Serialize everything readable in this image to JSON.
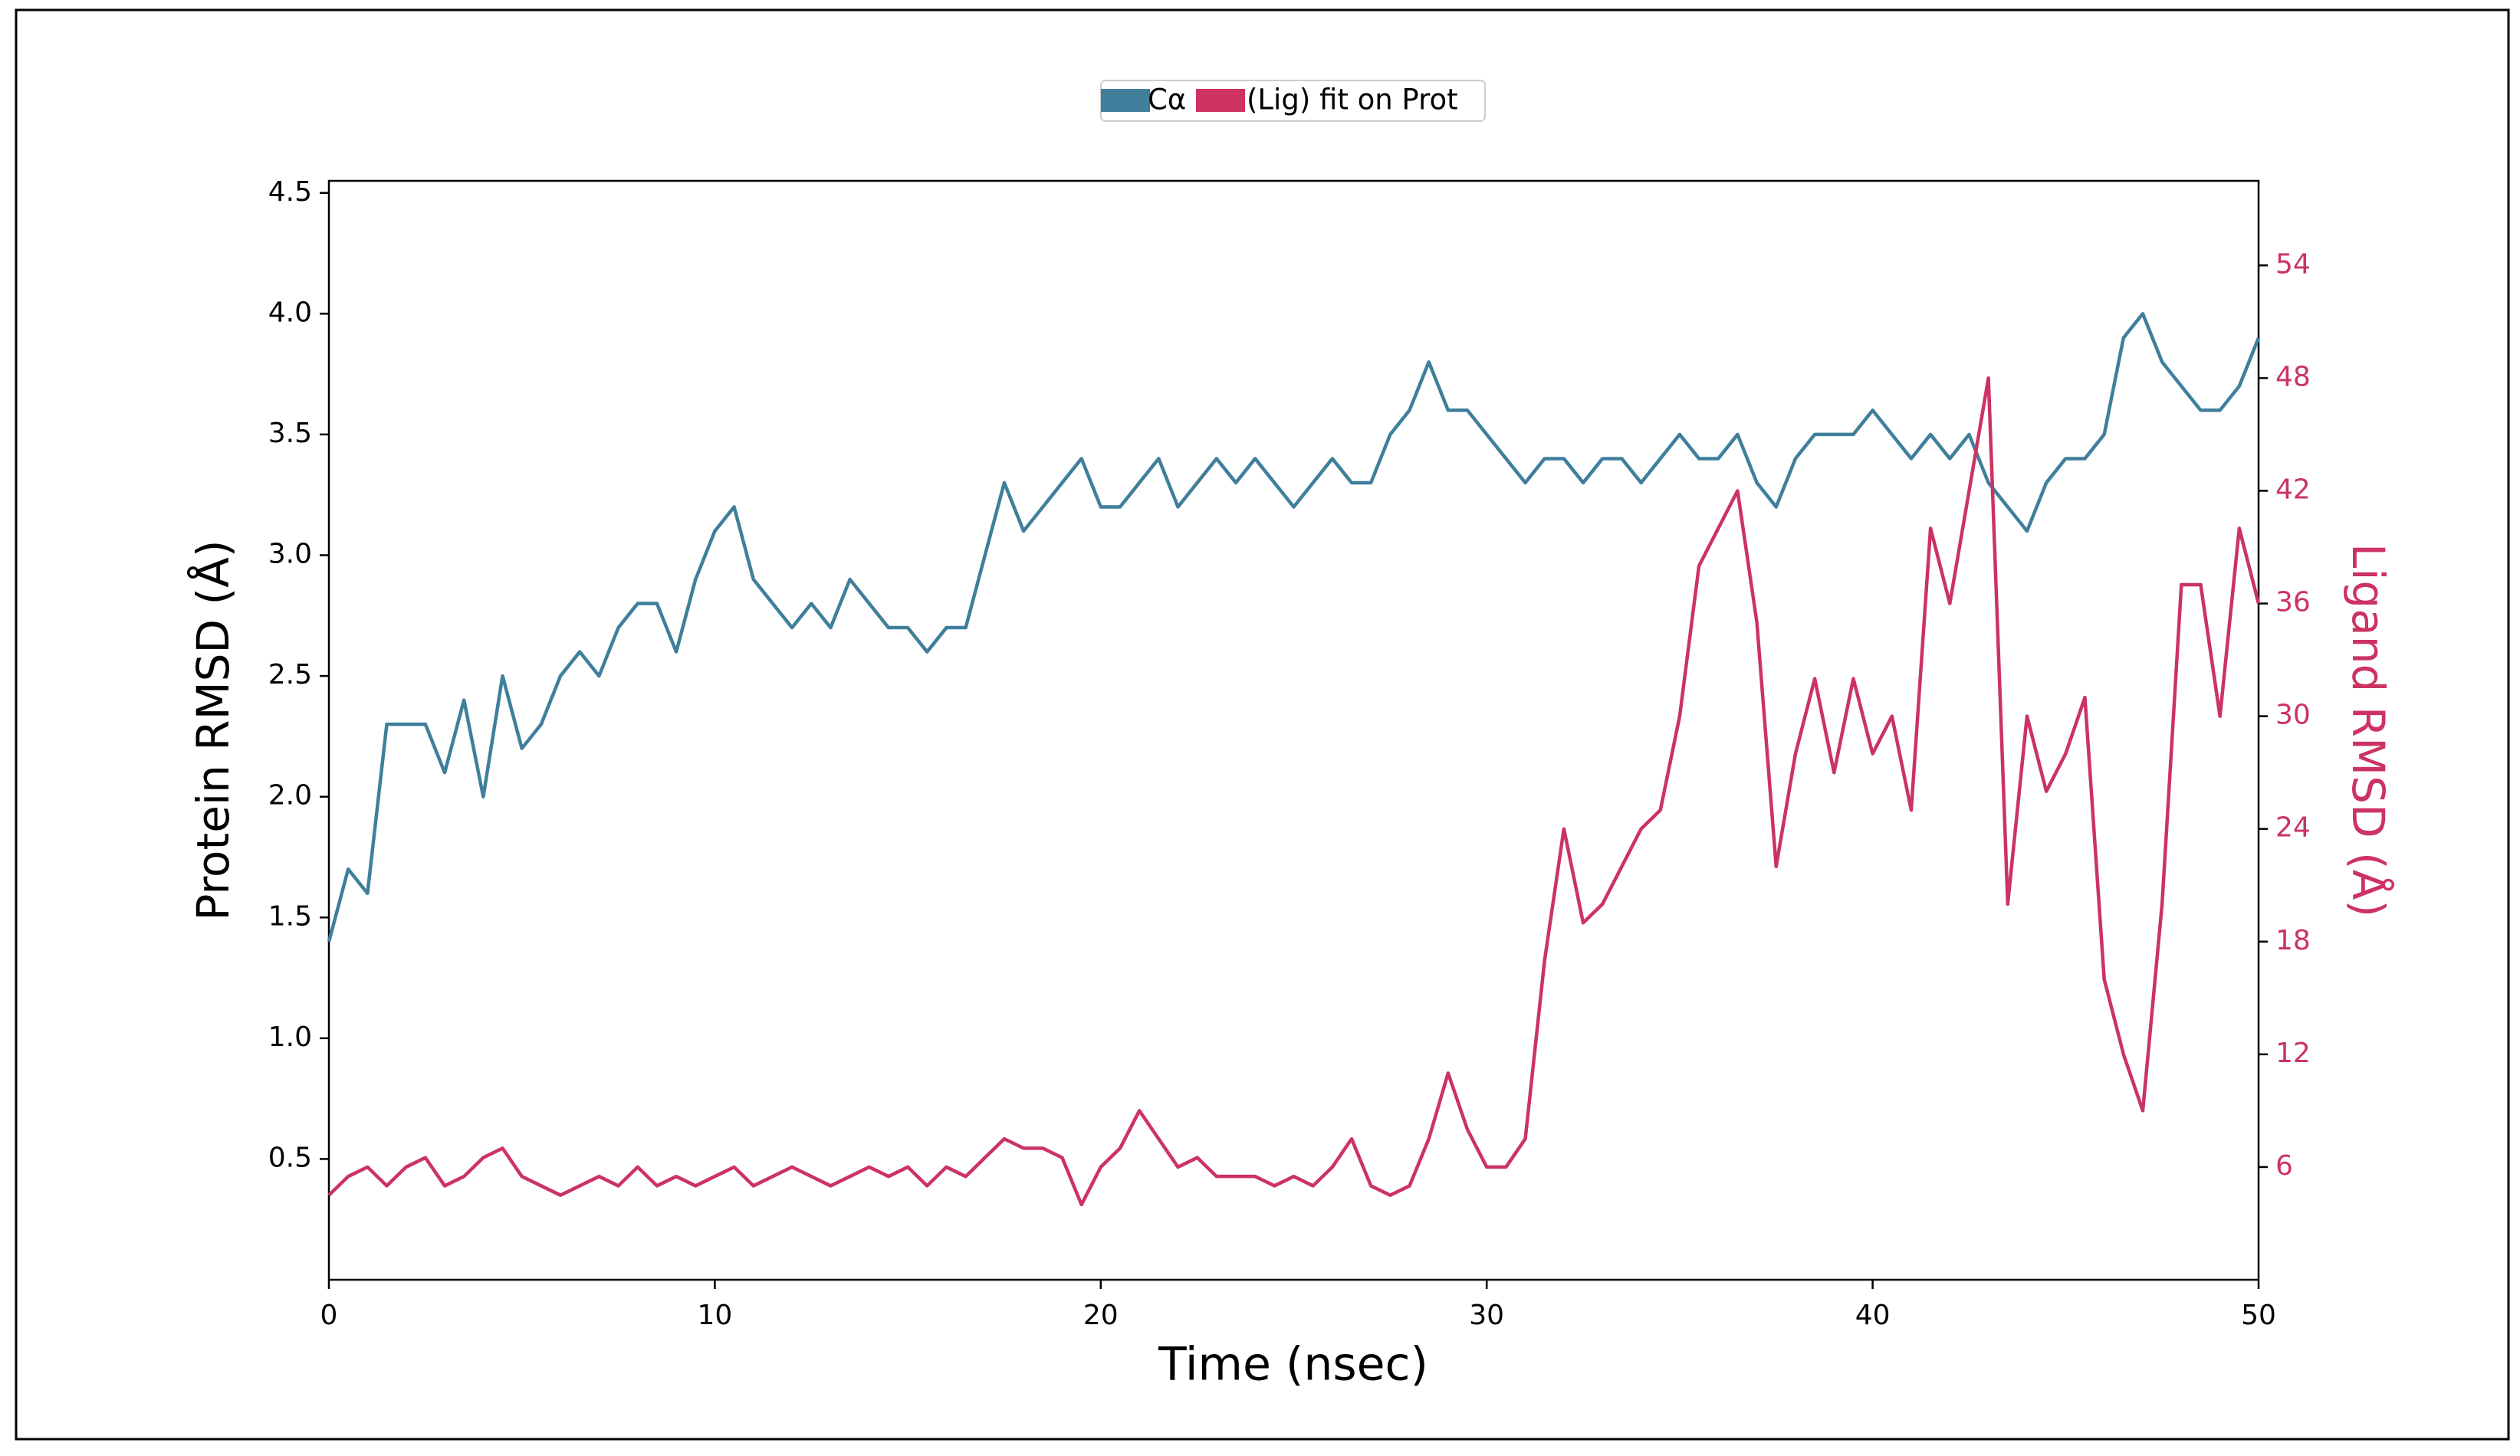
{
  "chart_data": {
    "type": "line",
    "xlabel": "Time (nsec)",
    "ylabel": "Protein RMSD (Å)",
    "y2label": "Ligand RMSD (Å)",
    "x": [
      0,
      0.5,
      1,
      1.5,
      2,
      2.5,
      3,
      3.5,
      4,
      4.5,
      5,
      5.5,
      6,
      6.5,
      7,
      7.5,
      8,
      8.5,
      9,
      9.5,
      10,
      10.5,
      11,
      11.5,
      12,
      12.5,
      13,
      13.5,
      14,
      14.5,
      15,
      15.5,
      16,
      16.5,
      17,
      17.5,
      18,
      18.5,
      19,
      19.5,
      20,
      20.5,
      21,
      21.5,
      22,
      22.5,
      23,
      23.5,
      24,
      24.5,
      25,
      25.5,
      26,
      26.5,
      27,
      27.5,
      28,
      28.5,
      29,
      29.5,
      30,
      30.5,
      31,
      31.5,
      32,
      32.5,
      33,
      33.5,
      34,
      34.5,
      35,
      35.5,
      36,
      36.5,
      37,
      37.5,
      38,
      38.5,
      39,
      39.5,
      40,
      40.5,
      41,
      41.5,
      42,
      42.5,
      43,
      43.5,
      44,
      44.5,
      45,
      45.5,
      46,
      46.5,
      47,
      47.5,
      48,
      48.5,
      49,
      49.5,
      50
    ],
    "series": [
      {
        "name": "Cα",
        "color": "#3f7f9c",
        "axis": "y",
        "values": [
          1.4,
          1.7,
          1.6,
          2.3,
          2.3,
          2.3,
          2.1,
          2.4,
          2.0,
          2.5,
          2.2,
          2.3,
          2.5,
          2.6,
          2.5,
          2.7,
          2.8,
          2.8,
          2.6,
          2.9,
          3.1,
          3.2,
          2.9,
          2.8,
          2.7,
          2.8,
          2.7,
          2.9,
          2.8,
          2.7,
          2.7,
          2.6,
          2.7,
          2.7,
          3.0,
          3.3,
          3.1,
          3.2,
          3.3,
          3.4,
          3.2,
          3.2,
          3.3,
          3.4,
          3.2,
          3.3,
          3.4,
          3.3,
          3.4,
          3.3,
          3.2,
          3.3,
          3.4,
          3.3,
          3.3,
          3.5,
          3.6,
          3.8,
          3.6,
          3.6,
          3.5,
          3.4,
          3.3,
          3.4,
          3.4,
          3.3,
          3.4,
          3.4,
          3.3,
          3.4,
          3.5,
          3.4,
          3.4,
          3.5,
          3.3,
          3.2,
          3.4,
          3.5,
          3.5,
          3.5,
          3.6,
          3.5,
          3.4,
          3.5,
          3.4,
          3.5,
          3.3,
          3.2,
          3.1,
          3.3,
          3.4,
          3.4,
          3.5,
          3.9,
          4.0,
          3.8,
          3.7,
          3.6,
          3.6,
          3.7,
          3.9
        ]
      },
      {
        "name": "(Lig) fit on Prot",
        "color": "#cc3362",
        "axis": "y2",
        "values": [
          4.5,
          5.5,
          6,
          5,
          6,
          6.5,
          5,
          5.5,
          6.5,
          7,
          5.5,
          5,
          4.5,
          5,
          5.5,
          5,
          6,
          5,
          5.5,
          5,
          5.5,
          6,
          5,
          5.5,
          6,
          5.5,
          5,
          5.5,
          6,
          5.5,
          6,
          5,
          6,
          5.5,
          6.5,
          7.5,
          7,
          7,
          6.5,
          4,
          6,
          7,
          9,
          7.5,
          6,
          6.5,
          5.5,
          5.5,
          5.5,
          5,
          5.5,
          5,
          6,
          7.5,
          5,
          4.5,
          5,
          7.5,
          11,
          8,
          6,
          6,
          7.5,
          17,
          24,
          19,
          20,
          22,
          24,
          25,
          30,
          38,
          40,
          42,
          35,
          22,
          28,
          32,
          27,
          32,
          28,
          30,
          25,
          40,
          36,
          42,
          48,
          20,
          30,
          26,
          28,
          31,
          16,
          12,
          9,
          20,
          37,
          37,
          30,
          40,
          36
        ]
      }
    ],
    "xlim": [
      0,
      50
    ],
    "xticks": [
      0,
      10,
      20,
      30,
      40,
      50
    ],
    "ylim": [
      0,
      4.55
    ],
    "yticks": [
      0.5,
      {
        "value": 1,
        "label": "1.0"
      },
      1.5,
      {
        "value": 2,
        "label": "2.0"
      },
      2.5,
      {
        "value": 3,
        "label": "3.0"
      },
      3.5,
      {
        "value": 4,
        "label": "4.0"
      },
      4.5
    ],
    "y2lim": [
      0,
      58.5
    ],
    "y2ticks": [
      6,
      12,
      18,
      24,
      30,
      36,
      42,
      48,
      54
    ],
    "legend": "top",
    "grid": false
  }
}
